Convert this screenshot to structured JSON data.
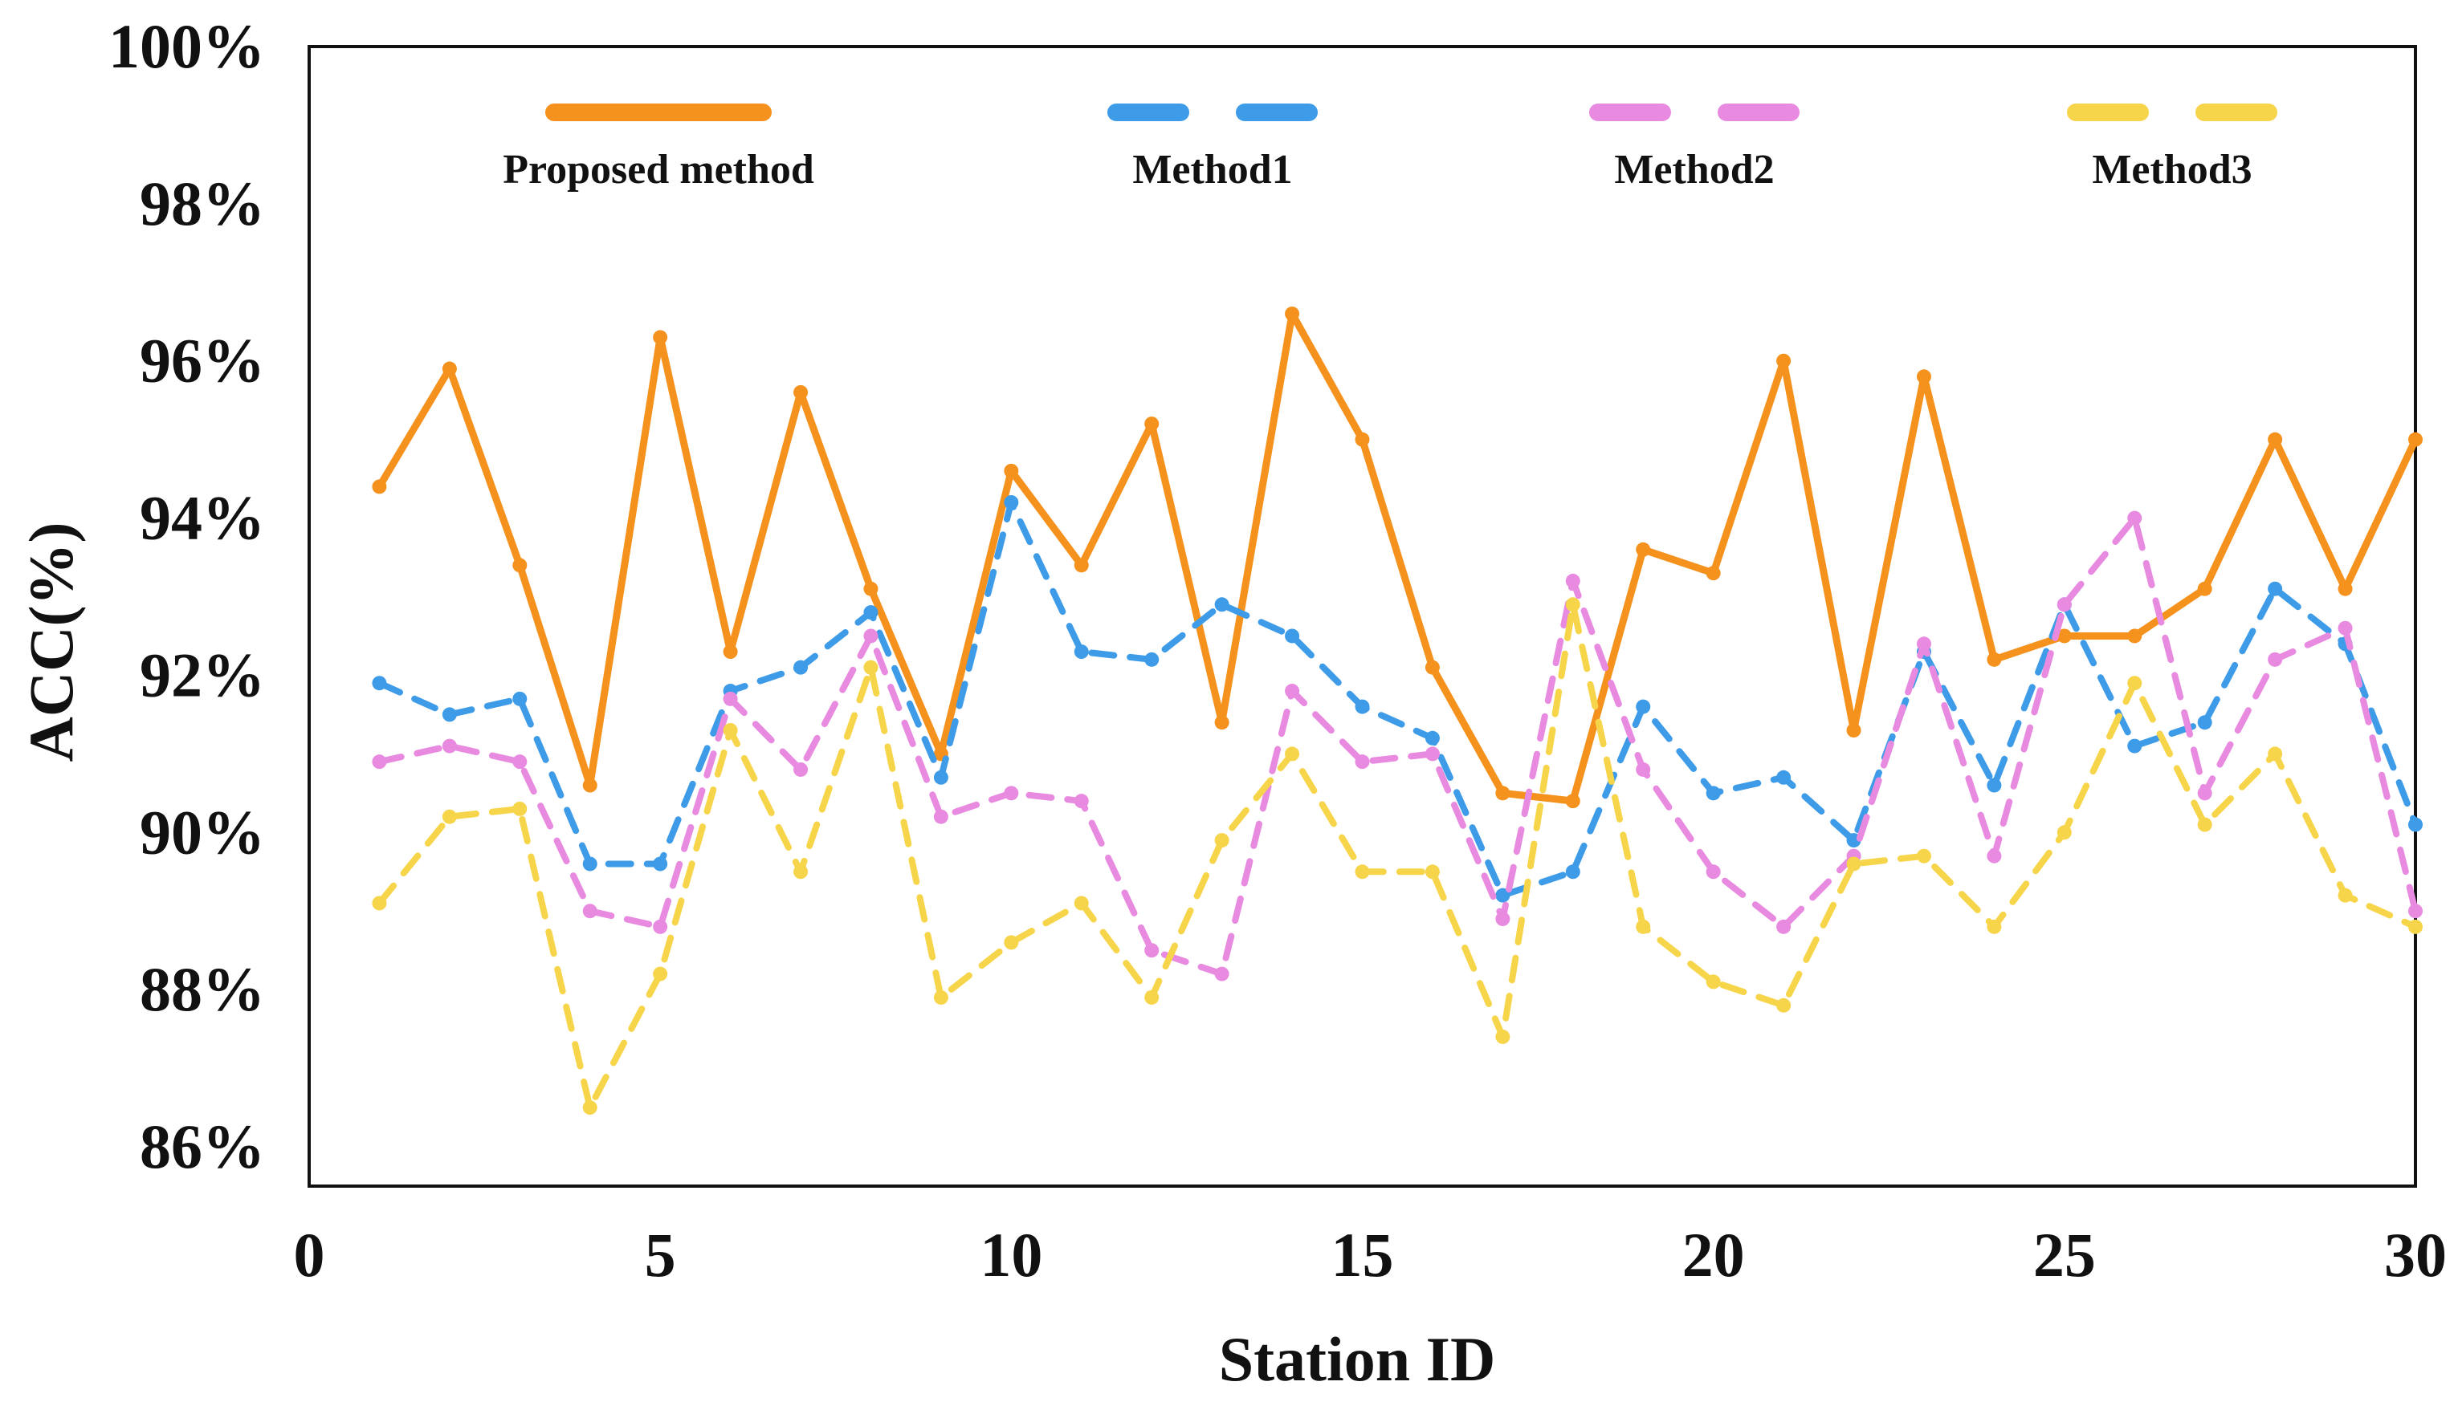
{
  "chart_data": {
    "type": "line",
    "title": "",
    "xlabel": "Station ID",
    "ylabel": "ACC(%)",
    "xlim": [
      0,
      30
    ],
    "ylim": [
      85.5,
      100
    ],
    "xticks": [
      0,
      5,
      10,
      15,
      20,
      25,
      30
    ],
    "yticks": [
      86,
      88,
      90,
      92,
      94,
      96,
      98,
      100
    ],
    "ytick_labels": [
      "86%",
      "88%",
      "90%",
      "92%",
      "94%",
      "96%",
      "98%",
      "100%"
    ],
    "grid": false,
    "legend_position": "top",
    "x": [
      1,
      2,
      3,
      4,
      5,
      6,
      7,
      8,
      9,
      10,
      11,
      12,
      13,
      14,
      15,
      16,
      17,
      18,
      19,
      20,
      21,
      22,
      23,
      24,
      25,
      26,
      27,
      28,
      29,
      30
    ],
    "series": [
      {
        "name": "Proposed method",
        "color": "#F5921E",
        "style": "solid",
        "values": [
          94.4,
          95.9,
          93.4,
          90.6,
          96.3,
          92.3,
          95.6,
          93.1,
          91.0,
          94.6,
          93.4,
          95.2,
          91.4,
          96.6,
          95.0,
          92.1,
          90.5,
          90.4,
          93.6,
          93.3,
          96.0,
          91.3,
          95.8,
          92.2,
          92.5,
          92.5,
          93.1,
          95.0,
          93.1,
          95.0
        ]
      },
      {
        "name": "Method1",
        "color": "#3E9BE8",
        "style": "dashed",
        "values": [
          91.9,
          91.5,
          91.7,
          89.6,
          89.6,
          91.8,
          92.1,
          92.8,
          90.7,
          94.2,
          92.3,
          92.2,
          92.9,
          92.5,
          91.6,
          91.2,
          89.2,
          89.5,
          91.6,
          90.5,
          90.7,
          89.9,
          92.3,
          90.6,
          92.9,
          91.1,
          91.4,
          93.1,
          92.4,
          90.1
        ]
      },
      {
        "name": "Method2",
        "color": "#E88AE0",
        "style": "dashed",
        "values": [
          90.9,
          91.1,
          90.9,
          89.0,
          88.8,
          91.7,
          90.8,
          92.5,
          90.2,
          90.5,
          90.4,
          88.5,
          88.2,
          91.8,
          90.9,
          91.0,
          88.9,
          93.2,
          90.8,
          89.5,
          88.8,
          89.7,
          92.4,
          89.7,
          92.9,
          94.0,
          90.5,
          92.2,
          92.6,
          89.0
        ]
      },
      {
        "name": "Method3",
        "color": "#F7D54A",
        "style": "dashed",
        "values": [
          89.1,
          90.2,
          90.3,
          86.5,
          88.2,
          91.3,
          89.5,
          92.1,
          87.9,
          88.6,
          89.1,
          87.9,
          89.9,
          91.0,
          89.5,
          89.5,
          87.4,
          92.9,
          88.8,
          88.1,
          87.8,
          89.6,
          89.7,
          88.8,
          90.0,
          91.9,
          90.1,
          91.0,
          89.2,
          88.8
        ]
      }
    ]
  }
}
